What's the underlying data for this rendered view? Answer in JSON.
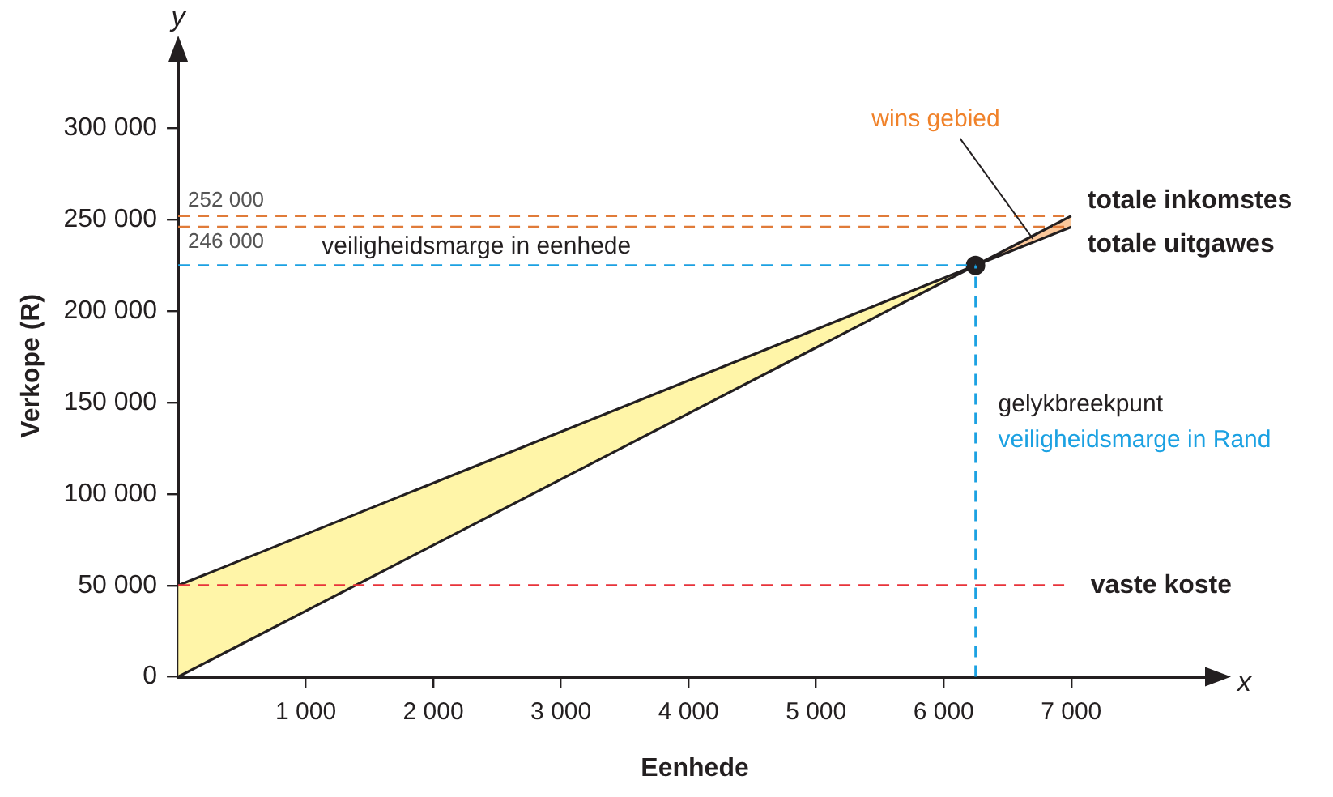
{
  "chart_data": {
    "type": "line",
    "xlabel": "Eenhede",
    "ylabel": "Verkope (R)",
    "xlim": [
      0,
      8100
    ],
    "ylim": [
      0,
      340000
    ],
    "xticks": [
      {
        "value": 1000,
        "label": "1 000"
      },
      {
        "value": 2000,
        "label": "2 000"
      },
      {
        "value": 3000,
        "label": "3 000"
      },
      {
        "value": 4000,
        "label": "4 000"
      },
      {
        "value": 5000,
        "label": "5 000"
      },
      {
        "value": 6000,
        "label": "6 000"
      },
      {
        "value": 7000,
        "label": "7 000"
      }
    ],
    "yticks": [
      0,
      {
        "value": 50000,
        "label": "50 000"
      },
      {
        "value": 100000,
        "label": "100 000"
      },
      {
        "value": 150000,
        "label": "150 000"
      },
      {
        "value": 200000,
        "label": "200 000"
      },
      {
        "value": 250000,
        "label": "250 000"
      },
      {
        "value": 300000,
        "label": "300 000"
      }
    ],
    "grid": false,
    "legend": false,
    "marker": "none",
    "series": [
      {
        "name": "totale inkomstes",
        "color": "#231f20",
        "x": [
          0,
          7000
        ],
        "values": [
          0,
          252000
        ]
      },
      {
        "name": "totale uitgawes",
        "color": "#231f20",
        "x": [
          0,
          7000
        ],
        "values": [
          50000,
          246000
        ]
      },
      {
        "type": "scatter",
        "color": "#231f20",
        "marker": "circle",
        "x": [
          6250
        ],
        "values": [
          225000
        ]
      }
    ],
    "ref_lines": [
      {
        "axis": "y",
        "value": 252000,
        "label": "252 000",
        "color": "#e07b39",
        "line_style": "dashed"
      },
      {
        "axis": "y",
        "value": 246000,
        "label": "246 000",
        "color": "#e07b39",
        "line_style": "dashed"
      },
      {
        "axis": "y",
        "value": 50000,
        "label": "vaste koste",
        "color": "#e8333a",
        "line_style": "dashed"
      },
      {
        "axis": "y",
        "value": 225000,
        "label": "veiligheidsmarge in eenhede",
        "color": "#1ba1e2",
        "line_style": "dashed"
      },
      {
        "axis": "x",
        "value": 6250,
        "label": "veiligheidsmarge in Rand",
        "color": "#1ba1e2",
        "line_style": "dashed"
      }
    ],
    "annotations": [
      "y",
      "x",
      {
        "text": "wins gebied",
        "x": 6700,
        "y": 239500
      },
      "gelykbreekpunt"
    ]
  }
}
